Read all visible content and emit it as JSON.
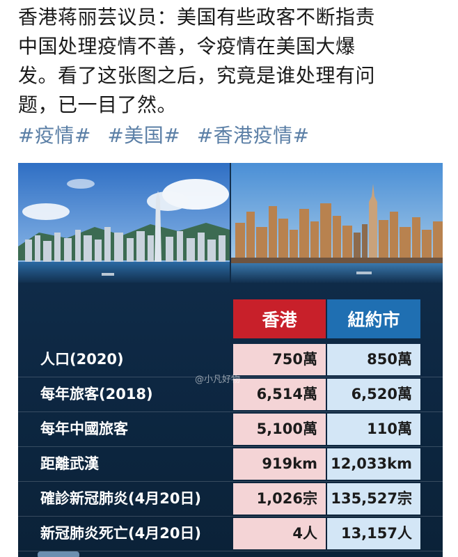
{
  "post": {
    "lines": [
      "香港蒋丽芸议员：美国有些政客不断指责",
      "中国处理疫情不善，令疫情在美国大爆",
      "发。看了这张图之后，究竟是谁处理有问",
      "题，已一目了然。"
    ],
    "tags": [
      "#疫情#",
      "#美国#",
      "#香港疫情#"
    ]
  },
  "table": {
    "col_hk": "香港",
    "col_ny": "紐約市",
    "rows": [
      {
        "label": "人口(2020)",
        "hk": "750萬",
        "ny": "850萬"
      },
      {
        "label": "每年旅客(2018)",
        "hk": "6,514萬",
        "ny": "6,520萬"
      },
      {
        "label": "每年中國旅客",
        "hk": "5,100萬",
        "ny": "110萬"
      },
      {
        "label": "距離武漢",
        "hk": "919km",
        "ny": "12,033km"
      },
      {
        "label": "確診新冠肺炎(4月20日)",
        "hk": "1,026宗",
        "ny": "135,527宗"
      },
      {
        "label": "新冠肺炎死亡(4月20日)",
        "hk": "4人",
        "ny": "13,157人"
      }
    ]
  },
  "watermark": "@小凡好物",
  "colors": {
    "hk_header": "#c8202a",
    "ny_header": "#1f6fb2",
    "hk_cell": "#f4d4d6",
    "ny_cell": "#d3e6f6",
    "tag": "#5b7fa6",
    "card_bg": "#0d2742"
  }
}
